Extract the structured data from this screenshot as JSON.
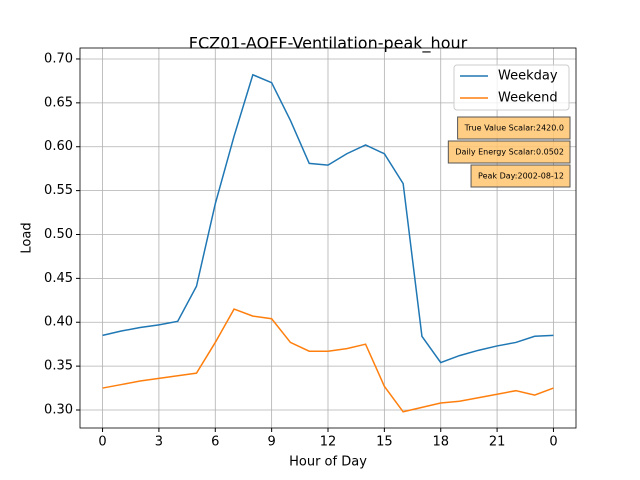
{
  "chart_data": {
    "type": "line",
    "title": "FCZ01-AOFF-Ventilation-peak_hour",
    "x_label": "Hour of Day",
    "y_label": "Load",
    "x": [
      0,
      1,
      2,
      3,
      4,
      5,
      6,
      7,
      8,
      9,
      10,
      11,
      12,
      13,
      14,
      15,
      16,
      17,
      18,
      19,
      20,
      21,
      22,
      23,
      24
    ],
    "series": [
      {
        "name": "Weekday",
        "color": "#1f77b4",
        "values": [
          0.385,
          0.39,
          0.394,
          0.397,
          0.401,
          0.441,
          0.535,
          0.612,
          0.682,
          0.673,
          0.63,
          0.581,
          0.579,
          0.592,
          0.602,
          0.592,
          0.558,
          0.384,
          0.354,
          0.362,
          0.368,
          0.373,
          0.377,
          0.384,
          0.385
        ]
      },
      {
        "name": "Weekend",
        "color": "#ff7f0e",
        "values": [
          0.325,
          0.329,
          0.333,
          0.336,
          0.339,
          0.342,
          0.377,
          0.415,
          0.407,
          0.404,
          0.377,
          0.367,
          0.367,
          0.37,
          0.375,
          0.327,
          0.298,
          0.303,
          0.308,
          0.31,
          0.314,
          0.318,
          0.322,
          0.317,
          0.325
        ]
      }
    ],
    "xlim": [
      -1.2,
      25.2
    ],
    "xticks": [
      0,
      3,
      6,
      9,
      12,
      15,
      18,
      21,
      {
        "value": 24,
        "label": "0"
      }
    ],
    "ylim": [
      0.2795,
      0.7125
    ],
    "yticks": [
      {
        "value": 0.3,
        "label": "0.30"
      },
      0.35,
      {
        "value": 0.4,
        "label": "0.40"
      },
      0.45,
      {
        "value": 0.5,
        "label": "0.50"
      },
      0.55,
      {
        "value": 0.6,
        "label": "0.60"
      },
      0.65,
      {
        "value": 0.7,
        "label": "0.70"
      }
    ],
    "grid": true,
    "legend": "upper right",
    "annotations": [
      "True Value Scalar:2420.0",
      "Daily Energy Scalar:0.0502",
      "Peak Day:2002-08-12"
    ]
  }
}
